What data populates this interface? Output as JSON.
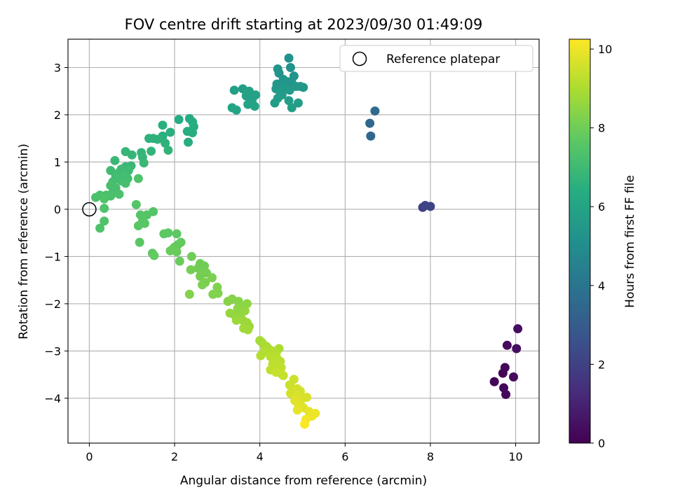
{
  "chart_data": {
    "type": "scatter",
    "title": "FOV centre drift starting at 2023/09/30 01:49:09",
    "xlabel": "Angular distance from reference (arcmin)",
    "ylabel": "Rotation from reference (arcmin)",
    "xlim": [
      -0.5,
      10.55
    ],
    "ylim": [
      -4.95,
      3.6
    ],
    "xticks": [
      0,
      2,
      4,
      6,
      8,
      10
    ],
    "yticks": [
      -4,
      -3,
      -2,
      -1,
      0,
      1,
      2,
      3
    ],
    "grid": true,
    "legend": {
      "placement": "top-right",
      "entries": [
        "Reference platepar"
      ]
    },
    "reference_point": {
      "x": 0,
      "y": 0,
      "label": "Reference platepar"
    },
    "colorbar": {
      "label": "Hours from first FF file",
      "range": [
        0,
        10.25
      ],
      "ticks": [
        0,
        2,
        4,
        6,
        8,
        10
      ],
      "colormap": "viridis"
    },
    "points": [
      {
        "x": 9.5,
        "y": -3.65,
        "hours": 0.1
      },
      {
        "x": 9.7,
        "y": -3.47,
        "hours": 0.1
      },
      {
        "x": 9.75,
        "y": -3.35,
        "hours": 0.2
      },
      {
        "x": 9.72,
        "y": -3.78,
        "hours": 0.2
      },
      {
        "x": 9.77,
        "y": -3.92,
        "hours": 0.2
      },
      {
        "x": 9.95,
        "y": -3.55,
        "hours": 0.3
      },
      {
        "x": 9.8,
        "y": -2.88,
        "hours": 0.3
      },
      {
        "x": 10.02,
        "y": -2.95,
        "hours": 0.4
      },
      {
        "x": 10.05,
        "y": -2.53,
        "hours": 0.4
      },
      {
        "x": 7.82,
        "y": 0.04,
        "hours": 2.0
      },
      {
        "x": 7.88,
        "y": 0.08,
        "hours": 2.1
      },
      {
        "x": 8.0,
        "y": 0.06,
        "hours": 2.1
      },
      {
        "x": 6.58,
        "y": 1.82,
        "hours": 3.5
      },
      {
        "x": 6.6,
        "y": 1.55,
        "hours": 3.5
      },
      {
        "x": 6.7,
        "y": 2.08,
        "hours": 3.6
      },
      {
        "x": 4.68,
        "y": 3.2,
        "hours": 5.2
      },
      {
        "x": 4.72,
        "y": 3.0,
        "hours": 5.2
      },
      {
        "x": 4.42,
        "y": 2.97,
        "hours": 5.3
      },
      {
        "x": 4.45,
        "y": 2.88,
        "hours": 5.3
      },
      {
        "x": 4.8,
        "y": 2.82,
        "hours": 5.3
      },
      {
        "x": 4.55,
        "y": 2.75,
        "hours": 5.4
      },
      {
        "x": 4.65,
        "y": 2.7,
        "hours": 5.4
      },
      {
        "x": 4.75,
        "y": 2.68,
        "hours": 5.4
      },
      {
        "x": 4.4,
        "y": 2.65,
        "hours": 5.4
      },
      {
        "x": 4.58,
        "y": 2.62,
        "hours": 5.5
      },
      {
        "x": 4.85,
        "y": 2.6,
        "hours": 5.5
      },
      {
        "x": 4.95,
        "y": 2.6,
        "hours": 5.5
      },
      {
        "x": 5.02,
        "y": 2.58,
        "hours": 5.5
      },
      {
        "x": 4.38,
        "y": 2.55,
        "hours": 5.5
      },
      {
        "x": 4.6,
        "y": 2.55,
        "hours": 5.6
      },
      {
        "x": 4.7,
        "y": 2.52,
        "hours": 5.6
      },
      {
        "x": 4.48,
        "y": 2.48,
        "hours": 5.6
      },
      {
        "x": 4.52,
        "y": 2.42,
        "hours": 5.6
      },
      {
        "x": 4.42,
        "y": 2.35,
        "hours": 5.7
      },
      {
        "x": 4.68,
        "y": 2.3,
        "hours": 5.7
      },
      {
        "x": 4.35,
        "y": 2.25,
        "hours": 5.7
      },
      {
        "x": 4.9,
        "y": 2.25,
        "hours": 5.7
      },
      {
        "x": 4.75,
        "y": 2.15,
        "hours": 5.8
      },
      {
        "x": 3.4,
        "y": 2.52,
        "hours": 5.8
      },
      {
        "x": 3.6,
        "y": 2.55,
        "hours": 5.8
      },
      {
        "x": 3.75,
        "y": 2.5,
        "hours": 5.9
      },
      {
        "x": 3.9,
        "y": 2.42,
        "hours": 5.9
      },
      {
        "x": 3.68,
        "y": 2.4,
        "hours": 5.9
      },
      {
        "x": 3.82,
        "y": 2.32,
        "hours": 5.9
      },
      {
        "x": 3.72,
        "y": 2.22,
        "hours": 6.0
      },
      {
        "x": 3.88,
        "y": 2.18,
        "hours": 6.0
      },
      {
        "x": 3.35,
        "y": 2.15,
        "hours": 6.0
      },
      {
        "x": 3.45,
        "y": 2.1,
        "hours": 6.0
      },
      {
        "x": 2.35,
        "y": 1.92,
        "hours": 6.3
      },
      {
        "x": 2.42,
        "y": 1.85,
        "hours": 6.3
      },
      {
        "x": 2.1,
        "y": 1.9,
        "hours": 6.3
      },
      {
        "x": 2.45,
        "y": 1.75,
        "hours": 6.4
      },
      {
        "x": 2.3,
        "y": 1.65,
        "hours": 6.4
      },
      {
        "x": 2.42,
        "y": 1.62,
        "hours": 6.4
      },
      {
        "x": 2.32,
        "y": 1.42,
        "hours": 6.4
      },
      {
        "x": 1.72,
        "y": 1.78,
        "hours": 6.5
      },
      {
        "x": 1.9,
        "y": 1.63,
        "hours": 6.5
      },
      {
        "x": 1.72,
        "y": 1.55,
        "hours": 6.5
      },
      {
        "x": 1.5,
        "y": 1.5,
        "hours": 6.6
      },
      {
        "x": 1.4,
        "y": 1.5,
        "hours": 6.6
      },
      {
        "x": 1.6,
        "y": 1.48,
        "hours": 6.6
      },
      {
        "x": 1.78,
        "y": 1.4,
        "hours": 6.6
      },
      {
        "x": 1.85,
        "y": 1.25,
        "hours": 6.7
      },
      {
        "x": 1.45,
        "y": 1.23,
        "hours": 6.7
      },
      {
        "x": 0.85,
        "y": 1.22,
        "hours": 6.8
      },
      {
        "x": 1.22,
        "y": 1.2,
        "hours": 6.8
      },
      {
        "x": 1.0,
        "y": 1.15,
        "hours": 6.8
      },
      {
        "x": 1.25,
        "y": 1.1,
        "hours": 6.8
      },
      {
        "x": 0.6,
        "y": 1.03,
        "hours": 6.9
      },
      {
        "x": 1.28,
        "y": 0.98,
        "hours": 6.9
      },
      {
        "x": 0.98,
        "y": 0.92,
        "hours": 6.9
      },
      {
        "x": 0.85,
        "y": 0.9,
        "hours": 6.9
      },
      {
        "x": 0.75,
        "y": 0.85,
        "hours": 7.0
      },
      {
        "x": 0.5,
        "y": 0.82,
        "hours": 7.0
      },
      {
        "x": 0.92,
        "y": 0.82,
        "hours": 7.0
      },
      {
        "x": 0.7,
        "y": 0.78,
        "hours": 7.0
      },
      {
        "x": 0.8,
        "y": 0.72,
        "hours": 7.1
      },
      {
        "x": 0.62,
        "y": 0.7,
        "hours": 7.1
      },
      {
        "x": 0.9,
        "y": 0.65,
        "hours": 7.1
      },
      {
        "x": 0.75,
        "y": 0.6,
        "hours": 7.1
      },
      {
        "x": 0.55,
        "y": 0.58,
        "hours": 7.1
      },
      {
        "x": 0.85,
        "y": 0.55,
        "hours": 7.2
      },
      {
        "x": 0.5,
        "y": 0.5,
        "hours": 7.2
      },
      {
        "x": 0.62,
        "y": 0.45,
        "hours": 7.2
      },
      {
        "x": 0.55,
        "y": 0.35,
        "hours": 7.2
      },
      {
        "x": 0.7,
        "y": 0.32,
        "hours": 7.3
      },
      {
        "x": 0.4,
        "y": 0.3,
        "hours": 7.3
      },
      {
        "x": 0.5,
        "y": 0.28,
        "hours": 7.3
      },
      {
        "x": 0.25,
        "y": 0.3,
        "hours": 7.3
      },
      {
        "x": 0.15,
        "y": 0.25,
        "hours": 7.3
      },
      {
        "x": 0.35,
        "y": 0.22,
        "hours": 7.4
      },
      {
        "x": 0.35,
        "y": 0.02,
        "hours": 7.4
      },
      {
        "x": 0.35,
        "y": -0.25,
        "hours": 7.4
      },
      {
        "x": 0.25,
        "y": -0.4,
        "hours": 7.4
      },
      {
        "x": 1.15,
        "y": 0.65,
        "hours": 7.4
      },
      {
        "x": 1.1,
        "y": 0.1,
        "hours": 7.5
      },
      {
        "x": 1.5,
        "y": -0.05,
        "hours": 7.5
      },
      {
        "x": 1.35,
        "y": -0.12,
        "hours": 7.5
      },
      {
        "x": 1.2,
        "y": -0.12,
        "hours": 7.5
      },
      {
        "x": 1.25,
        "y": -0.25,
        "hours": 7.6
      },
      {
        "x": 1.3,
        "y": -0.3,
        "hours": 7.6
      },
      {
        "x": 1.15,
        "y": -0.35,
        "hours": 7.6
      },
      {
        "x": 1.18,
        "y": -0.7,
        "hours": 7.6
      },
      {
        "x": 1.75,
        "y": -0.52,
        "hours": 7.7
      },
      {
        "x": 1.85,
        "y": -0.5,
        "hours": 7.7
      },
      {
        "x": 2.05,
        "y": -0.52,
        "hours": 7.7
      },
      {
        "x": 1.48,
        "y": -0.93,
        "hours": 7.7
      },
      {
        "x": 1.52,
        "y": -0.98,
        "hours": 7.8
      },
      {
        "x": 2.15,
        "y": -0.7,
        "hours": 7.8
      },
      {
        "x": 2.08,
        "y": -0.75,
        "hours": 7.8
      },
      {
        "x": 2.0,
        "y": -0.8,
        "hours": 7.8
      },
      {
        "x": 1.95,
        "y": -0.85,
        "hours": 7.9
      },
      {
        "x": 1.9,
        "y": -0.88,
        "hours": 7.9
      },
      {
        "x": 2.05,
        "y": -0.9,
        "hours": 7.9
      },
      {
        "x": 2.12,
        "y": -1.1,
        "hours": 7.9
      },
      {
        "x": 2.4,
        "y": -1.0,
        "hours": 8.0
      },
      {
        "x": 2.6,
        "y": -1.15,
        "hours": 8.0
      },
      {
        "x": 2.7,
        "y": -1.2,
        "hours": 8.0
      },
      {
        "x": 2.55,
        "y": -1.25,
        "hours": 8.0
      },
      {
        "x": 2.38,
        "y": -1.28,
        "hours": 8.1
      },
      {
        "x": 2.65,
        "y": -1.35,
        "hours": 8.1
      },
      {
        "x": 2.75,
        "y": -1.35,
        "hours": 8.1
      },
      {
        "x": 2.6,
        "y": -1.42,
        "hours": 8.1
      },
      {
        "x": 2.88,
        "y": -1.45,
        "hours": 8.2
      },
      {
        "x": 2.72,
        "y": -1.55,
        "hours": 8.2
      },
      {
        "x": 2.65,
        "y": -1.6,
        "hours": 8.2
      },
      {
        "x": 3.0,
        "y": -1.65,
        "hours": 8.3
      },
      {
        "x": 2.9,
        "y": -1.8,
        "hours": 8.3
      },
      {
        "x": 3.02,
        "y": -1.78,
        "hours": 8.3
      },
      {
        "x": 2.35,
        "y": -1.8,
        "hours": 8.3
      },
      {
        "x": 3.25,
        "y": -1.95,
        "hours": 8.4
      },
      {
        "x": 3.35,
        "y": -1.9,
        "hours": 8.4
      },
      {
        "x": 3.5,
        "y": -1.95,
        "hours": 8.4
      },
      {
        "x": 3.7,
        "y": -2.0,
        "hours": 8.5
      },
      {
        "x": 3.48,
        "y": -2.1,
        "hours": 8.5
      },
      {
        "x": 3.6,
        "y": -2.05,
        "hours": 8.5
      },
      {
        "x": 3.52,
        "y": -2.18,
        "hours": 8.5
      },
      {
        "x": 3.65,
        "y": -2.15,
        "hours": 8.6
      },
      {
        "x": 3.3,
        "y": -2.2,
        "hours": 8.6
      },
      {
        "x": 3.42,
        "y": -2.25,
        "hours": 8.6
      },
      {
        "x": 3.55,
        "y": -2.28,
        "hours": 8.6
      },
      {
        "x": 3.6,
        "y": -2.35,
        "hours": 8.7
      },
      {
        "x": 3.7,
        "y": -2.4,
        "hours": 8.7
      },
      {
        "x": 3.45,
        "y": -2.35,
        "hours": 8.7
      },
      {
        "x": 3.75,
        "y": -2.48,
        "hours": 8.7
      },
      {
        "x": 3.62,
        "y": -2.52,
        "hours": 8.8
      },
      {
        "x": 3.72,
        "y": -2.55,
        "hours": 8.8
      },
      {
        "x": 4.0,
        "y": -2.78,
        "hours": 8.9
      },
      {
        "x": 4.05,
        "y": -2.82,
        "hours": 8.9
      },
      {
        "x": 4.1,
        "y": -2.88,
        "hours": 8.9
      },
      {
        "x": 4.15,
        "y": -2.9,
        "hours": 9.0
      },
      {
        "x": 4.2,
        "y": -2.95,
        "hours": 9.0
      },
      {
        "x": 4.45,
        "y": -2.95,
        "hours": 9.0
      },
      {
        "x": 4.3,
        "y": -3.0,
        "hours": 9.1
      },
      {
        "x": 4.1,
        "y": -3.02,
        "hours": 9.1
      },
      {
        "x": 4.38,
        "y": -3.05,
        "hours": 9.1
      },
      {
        "x": 4.02,
        "y": -3.1,
        "hours": 9.1
      },
      {
        "x": 4.25,
        "y": -3.12,
        "hours": 9.2
      },
      {
        "x": 4.4,
        "y": -3.15,
        "hours": 9.2
      },
      {
        "x": 4.35,
        "y": -3.2,
        "hours": 9.2
      },
      {
        "x": 4.48,
        "y": -3.22,
        "hours": 9.2
      },
      {
        "x": 4.3,
        "y": -3.28,
        "hours": 9.3
      },
      {
        "x": 4.42,
        "y": -3.3,
        "hours": 9.3
      },
      {
        "x": 4.5,
        "y": -3.35,
        "hours": 9.3
      },
      {
        "x": 4.25,
        "y": -3.4,
        "hours": 9.3
      },
      {
        "x": 4.38,
        "y": -3.45,
        "hours": 9.4
      },
      {
        "x": 4.5,
        "y": -3.48,
        "hours": 9.4
      },
      {
        "x": 4.55,
        "y": -3.52,
        "hours": 9.4
      },
      {
        "x": 4.8,
        "y": -3.6,
        "hours": 9.5
      },
      {
        "x": 4.7,
        "y": -3.72,
        "hours": 9.5
      },
      {
        "x": 4.75,
        "y": -3.78,
        "hours": 9.5
      },
      {
        "x": 4.88,
        "y": -3.8,
        "hours": 9.6
      },
      {
        "x": 4.95,
        "y": -3.85,
        "hours": 9.6
      },
      {
        "x": 4.72,
        "y": -3.9,
        "hours": 9.6
      },
      {
        "x": 4.85,
        "y": -3.95,
        "hours": 9.7
      },
      {
        "x": 5.1,
        "y": -3.98,
        "hours": 9.7
      },
      {
        "x": 4.98,
        "y": -4.02,
        "hours": 9.7
      },
      {
        "x": 4.82,
        "y": -4.05,
        "hours": 9.8
      },
      {
        "x": 4.9,
        "y": -4.12,
        "hours": 9.8
      },
      {
        "x": 5.02,
        "y": -4.2,
        "hours": 9.8
      },
      {
        "x": 4.88,
        "y": -4.25,
        "hours": 9.9
      },
      {
        "x": 5.15,
        "y": -4.28,
        "hours": 9.9
      },
      {
        "x": 5.3,
        "y": -4.32,
        "hours": 10.0
      },
      {
        "x": 5.22,
        "y": -4.38,
        "hours": 10.0
      },
      {
        "x": 5.08,
        "y": -4.45,
        "hours": 10.1
      },
      {
        "x": 5.05,
        "y": -4.55,
        "hours": 10.2
      }
    ]
  }
}
